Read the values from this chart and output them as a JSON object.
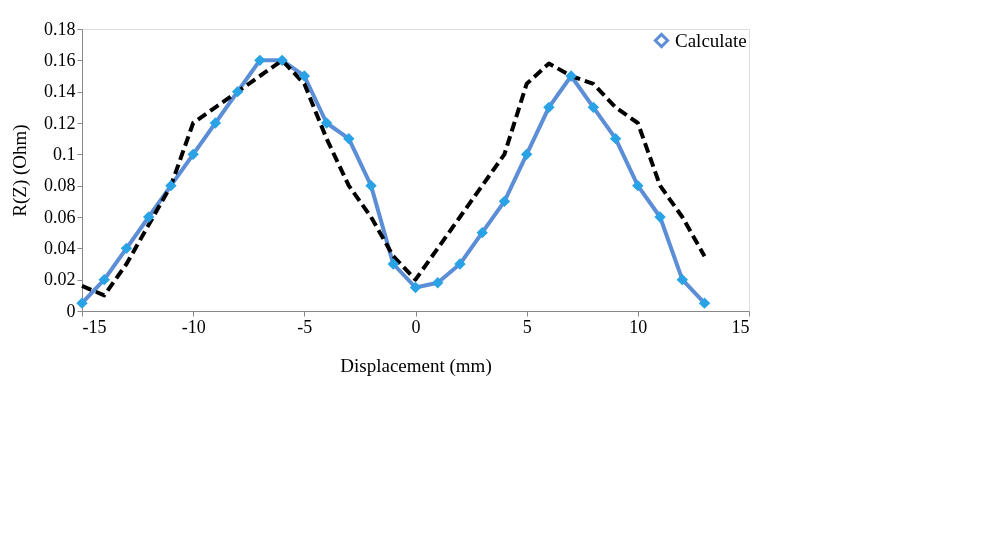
{
  "chart_data": {
    "type": "line",
    "xlabel": "Displacement (mm)",
    "ylabel": "R(Z)  (Ohm)",
    "xlim": [
      -15,
      15
    ],
    "xticks": [
      -15,
      -10,
      -5,
      0,
      5,
      10,
      15
    ],
    "ylim": [
      0,
      0.18
    ],
    "yticks": [
      0,
      0.02,
      0.04,
      0.06,
      0.08,
      0.1,
      0.12,
      0.14,
      0.16,
      0.18
    ],
    "grid": false,
    "legend": "top right",
    "series": [
      {
        "name": "Calculate",
        "color": "#5b8ed6",
        "marker": "diamond",
        "line_style": "solid",
        "x": [
          -15,
          -14,
          -13,
          -12,
          -11,
          -10,
          -9,
          -8,
          -7,
          -6,
          -5,
          -4,
          -3,
          -2,
          -1,
          0,
          1,
          2,
          3,
          4,
          5,
          6,
          7,
          8,
          9,
          10,
          11,
          12,
          13
        ],
        "values": [
          0.005,
          0.02,
          0.04,
          0.06,
          0.08,
          0.1,
          0.12,
          0.14,
          0.16,
          0.16,
          0.15,
          0.12,
          0.11,
          0.08,
          0.03,
          0.015,
          0.018,
          0.03,
          0.05,
          0.07,
          0.1,
          0.13,
          0.15,
          0.13,
          0.11,
          0.08,
          0.06,
          0.02,
          0.005
        ]
      },
      {
        "color": "#000000",
        "marker": "none",
        "line_style": "dashed",
        "x": [
          -15,
          -14,
          -13,
          -12,
          -11,
          -10,
          -9,
          -8,
          -7,
          -6,
          -5,
          -4,
          -3,
          -2,
          -1,
          0,
          1,
          2,
          3,
          4,
          5,
          6,
          7,
          8,
          9,
          10,
          11,
          12,
          13
        ],
        "values": [
          0.016,
          0.01,
          0.03,
          0.055,
          0.08,
          0.12,
          0.13,
          0.14,
          0.15,
          0.16,
          0.145,
          0.11,
          0.08,
          0.06,
          0.035,
          0.02,
          0.04,
          0.06,
          0.08,
          0.1,
          0.145,
          0.158,
          0.15,
          0.145,
          0.13,
          0.12,
          0.08,
          0.06,
          0.035
        ]
      }
    ]
  }
}
